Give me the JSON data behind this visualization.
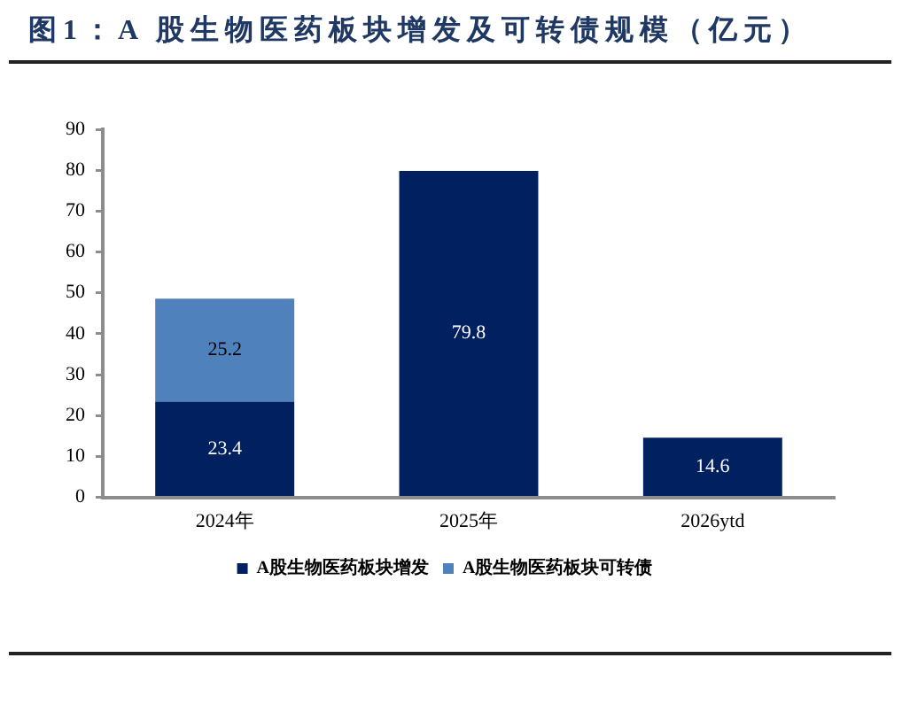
{
  "chart_data": {
    "type": "bar",
    "title": "图1：A 股生物医药板块增发及可转债规模（亿元）",
    "categories": [
      "2024年",
      "2025年",
      "2026ytd"
    ],
    "stacked": true,
    "series": [
      {
        "name": "A股生物医药板块增发",
        "color": "#002060",
        "values": [
          23.4,
          79.8,
          14.6
        ]
      },
      {
        "name": "A股生物医药板块可转债",
        "color": "#4f81bd",
        "values": [
          25.2,
          null,
          null
        ]
      }
    ],
    "ylim": [
      0,
      90
    ],
    "yticks": [
      0,
      10,
      20,
      30,
      40,
      50,
      60,
      70,
      80,
      90
    ],
    "grid": false,
    "legend": "bottom",
    "data_labels": true
  }
}
